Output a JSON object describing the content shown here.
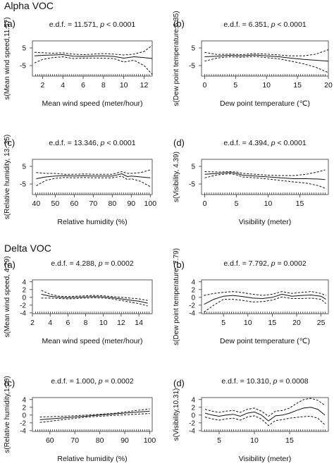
{
  "sections": [
    {
      "title": "Alpha VOC"
    },
    {
      "title": "Delta VOC"
    }
  ],
  "chart_data": [
    {
      "type": "line",
      "section": "Alpha VOC",
      "panel": "(a)",
      "stat_prefix": "e.d.f. = 11.571, ",
      "p_label": "p",
      "p_value": " < 0.0001",
      "xlabel": "Mean wind speed (meter/hour)",
      "ylabel": "s(Mean wind speed,11.57)",
      "xlim": [
        1,
        12.8
      ],
      "ylim": [
        -11,
        9
      ],
      "xticks": [
        2,
        4,
        6,
        8,
        10,
        12
      ],
      "yticks": [
        5,
        -5
      ],
      "series": [
        {
          "style": "solid",
          "x": [
            1.2,
            2,
            3,
            4,
            5,
            6,
            7,
            8,
            9,
            10,
            11,
            12,
            12.8
          ],
          "y": [
            0.5,
            0.8,
            1.0,
            1.2,
            0.3,
            0.2,
            0.4,
            0.5,
            0.2,
            -0.8,
            0.0,
            -0.5,
            -1.0
          ]
        },
        {
          "style": "dashed",
          "x": [
            1.2,
            2,
            3,
            4,
            5,
            6,
            7,
            8,
            9,
            10,
            11,
            12,
            12.8
          ],
          "y": [
            2.5,
            2.3,
            2.0,
            2.2,
            1.5,
            1.2,
            1.5,
            1.8,
            1.5,
            1.0,
            1.5,
            3.0,
            6.5
          ]
        },
        {
          "style": "dashed",
          "x": [
            1.2,
            2,
            3,
            4,
            5,
            6,
            7,
            8,
            9,
            10,
            11,
            12,
            12.8
          ],
          "y": [
            -3.5,
            -1.5,
            -0.5,
            0.0,
            -1.0,
            -0.8,
            -0.7,
            -0.8,
            -1.0,
            -3.0,
            -2.0,
            -5.0,
            -10.0
          ]
        }
      ]
    },
    {
      "type": "line",
      "section": "Alpha VOC",
      "panel": "(b)",
      "stat_prefix": "e.d.f. = 6.351, ",
      "p_label": "p",
      "p_value": " < 0.0001",
      "xlabel": "Dew point temperature (℃)",
      "ylabel": "s(Dew point temperature,6.35)",
      "xlim": [
        -0.5,
        20
      ],
      "ylim": [
        -11,
        9
      ],
      "xticks": [
        0,
        5,
        10,
        15,
        20
      ],
      "yticks": [
        5,
        -5
      ],
      "series": [
        {
          "style": "solid",
          "x": [
            0,
            2,
            4,
            6,
            8,
            10,
            12,
            14,
            16,
            18,
            20
          ],
          "y": [
            0.0,
            0.3,
            0.8,
            0.5,
            1.0,
            0.5,
            0.0,
            -0.8,
            -1.5,
            -2.0,
            -2.5
          ]
        },
        {
          "style": "dashed",
          "x": [
            0,
            2,
            4,
            6,
            8,
            10,
            12,
            14,
            16,
            18,
            20
          ],
          "y": [
            2.5,
            1.3,
            1.5,
            1.2,
            1.8,
            1.5,
            1.0,
            0.5,
            0.5,
            1.5,
            4.0
          ]
        },
        {
          "style": "dashed",
          "x": [
            0,
            2,
            4,
            6,
            8,
            10,
            12,
            14,
            16,
            18,
            20
          ],
          "y": [
            -2.5,
            -0.7,
            0.0,
            -0.3,
            0.2,
            -0.5,
            -1.2,
            -2.5,
            -4.0,
            -6.0,
            -9.0
          ]
        }
      ]
    },
    {
      "type": "line",
      "section": "Alpha VOC",
      "panel": "(c)",
      "stat_prefix": "e.d.f. = 13.346, ",
      "p_label": "p",
      "p_value": " < 0.0001",
      "xlabel": "Relative humidity (%)",
      "ylabel": "s(Relative humidity, 13. 35)",
      "xlim": [
        38,
        101
      ],
      "ylim": [
        -11,
        9
      ],
      "xticks": [
        40,
        50,
        60,
        70,
        80,
        90,
        100
      ],
      "yticks": [
        5,
        -5
      ],
      "series": [
        {
          "style": "solid",
          "x": [
            40,
            45,
            50,
            55,
            60,
            65,
            70,
            75,
            80,
            85,
            88,
            90,
            95,
            100
          ],
          "y": [
            -2.0,
            -1.0,
            -0.5,
            -0.3,
            -0.5,
            -0.3,
            -0.5,
            -0.5,
            -0.5,
            0.8,
            -0.8,
            -0.5,
            -1.0,
            -1.5
          ]
        },
        {
          "style": "dashed",
          "x": [
            40,
            45,
            50,
            55,
            60,
            65,
            70,
            75,
            80,
            85,
            88,
            90,
            95,
            100
          ],
          "y": [
            1.5,
            1.0,
            1.0,
            0.5,
            0.5,
            0.7,
            0.5,
            0.5,
            0.5,
            2.0,
            1.0,
            1.0,
            1.5,
            3.0
          ]
        },
        {
          "style": "dashed",
          "x": [
            40,
            45,
            50,
            55,
            60,
            65,
            70,
            75,
            80,
            85,
            88,
            90,
            95,
            100
          ],
          "y": [
            -6.0,
            -3.0,
            -1.8,
            -1.3,
            -1.5,
            -1.3,
            -1.5,
            -1.5,
            -1.5,
            -0.5,
            -2.5,
            -2.0,
            -3.5,
            -6.5
          ]
        }
      ]
    },
    {
      "type": "line",
      "section": "Alpha VOC",
      "panel": "(d)",
      "stat_prefix": "e.d.f. = 4.394, ",
      "p_label": "p",
      "p_value": " < 0.0001",
      "xlabel": "Visibility (meter)",
      "ylabel": "s(Visibility, 4.39)",
      "xlim": [
        -0.5,
        19.5
      ],
      "ylim": [
        -11,
        9
      ],
      "xticks": [
        0,
        5,
        10,
        15
      ],
      "yticks": [
        5,
        -5
      ],
      "series": [
        {
          "style": "solid",
          "x": [
            0,
            2,
            4,
            5,
            6,
            8,
            10,
            12,
            14,
            16,
            18,
            19
          ],
          "y": [
            0.5,
            1.0,
            1.5,
            1.0,
            0.0,
            -0.5,
            -1.0,
            -1.5,
            -2.0,
            -2.0,
            -2.2,
            -2.5
          ]
        },
        {
          "style": "dashed",
          "x": [
            0,
            2,
            4,
            5,
            6,
            8,
            10,
            12,
            14,
            16,
            18,
            19
          ],
          "y": [
            2.0,
            1.8,
            2.0,
            1.8,
            1.0,
            0.5,
            0.0,
            -0.2,
            -0.2,
            0.5,
            2.0,
            3.0
          ]
        },
        {
          "style": "dashed",
          "x": [
            0,
            2,
            4,
            5,
            6,
            8,
            10,
            12,
            14,
            16,
            18,
            19
          ],
          "y": [
            -1.5,
            0.2,
            0.8,
            0.2,
            -1.0,
            -1.5,
            -2.2,
            -3.0,
            -3.8,
            -4.5,
            -6.0,
            -7.5
          ]
        }
      ]
    },
    {
      "type": "line",
      "section": "Delta VOC",
      "panel": "(a)",
      "stat_prefix": "e.d.f. = 4.288, ",
      "p_label": "p",
      "p_value": " = 0.0002",
      "xlabel": "Mean wind speed (meter/hour)",
      "ylabel": "s(Mean wind speed, 4.29)",
      "xlim": [
        2,
        15.5
      ],
      "ylim": [
        -4.2,
        4.5
      ],
      "xticks": [
        2,
        4,
        6,
        8,
        10,
        12,
        14
      ],
      "yticks": [
        4,
        2,
        0,
        -2,
        -4
      ],
      "series": [
        {
          "style": "solid",
          "x": [
            3,
            4,
            5,
            6,
            7,
            8,
            9,
            10,
            11,
            12,
            13,
            14,
            15
          ],
          "y": [
            0.8,
            0.3,
            0.0,
            -0.1,
            0.0,
            0.1,
            0.2,
            0.1,
            -0.1,
            -0.4,
            -0.7,
            -1.0,
            -1.5
          ]
        },
        {
          "style": "dashed",
          "x": [
            3,
            4,
            5,
            6,
            7,
            8,
            9,
            10,
            11,
            12,
            13,
            14,
            15
          ],
          "y": [
            1.8,
            0.8,
            0.3,
            0.2,
            0.3,
            0.4,
            0.5,
            0.4,
            0.2,
            0.0,
            -0.2,
            -0.4,
            -0.8
          ]
        },
        {
          "style": "dashed",
          "x": [
            3,
            4,
            5,
            6,
            7,
            8,
            9,
            10,
            11,
            12,
            13,
            14,
            15
          ],
          "y": [
            -0.2,
            -0.2,
            -0.3,
            -0.4,
            -0.3,
            -0.2,
            -0.1,
            -0.2,
            -0.4,
            -0.8,
            -1.2,
            -1.6,
            -2.2
          ]
        }
      ]
    },
    {
      "type": "line",
      "section": "Delta VOC",
      "panel": "(b)",
      "stat_prefix": "e.d.f. = 7.792, ",
      "p_label": "p",
      "p_value": " = 0.0002",
      "xlabel": "Dew point temperature (℃)",
      "ylabel": "s(Dew point temperature, 7.79)",
      "xlim": [
        0.5,
        26.5
      ],
      "ylim": [
        -4.2,
        4.5
      ],
      "xticks": [
        5,
        10,
        15,
        20,
        25
      ],
      "yticks": [
        4,
        2,
        0,
        -2,
        -4
      ],
      "series": [
        {
          "style": "solid",
          "x": [
            1,
            3,
            5,
            7,
            9,
            11,
            13,
            15,
            17,
            19,
            21,
            23,
            25,
            26
          ],
          "y": [
            -1.8,
            -0.5,
            0.3,
            0.5,
            0.2,
            -0.2,
            -0.3,
            0.0,
            0.8,
            0.3,
            0.5,
            0.6,
            0.3,
            -0.5
          ]
        },
        {
          "style": "dashed",
          "x": [
            1,
            3,
            5,
            7,
            9,
            11,
            13,
            15,
            17,
            19,
            21,
            23,
            25,
            26
          ],
          "y": [
            0.5,
            1.0,
            1.3,
            1.5,
            1.2,
            0.8,
            0.5,
            0.8,
            1.5,
            1.0,
            1.3,
            1.5,
            1.0,
            0.5
          ]
        },
        {
          "style": "dashed",
          "x": [
            1,
            3,
            5,
            7,
            9,
            11,
            13,
            15,
            17,
            19,
            21,
            23,
            25,
            26
          ],
          "y": [
            -3.8,
            -2.0,
            -0.5,
            -0.5,
            -0.8,
            -1.2,
            -1.1,
            -0.7,
            0.1,
            -0.3,
            -0.3,
            -0.2,
            -0.5,
            -1.6
          ]
        }
      ]
    },
    {
      "type": "line",
      "section": "Delta VOC",
      "panel": "(c)",
      "stat_prefix": "e.d.f. = 1.000, ",
      "p_label": "p",
      "p_value": " = 0.0002",
      "xlabel": "Relative humidity (%)",
      "ylabel": "s(Relative humidity,1.00)",
      "xlim": [
        53,
        101
      ],
      "ylim": [
        -4.2,
        4.5
      ],
      "xticks": [
        60,
        70,
        80,
        90,
        100
      ],
      "yticks": [
        4,
        2,
        0,
        -2,
        -4
      ],
      "series": [
        {
          "style": "solid",
          "x": [
            56,
            100
          ],
          "y": [
            -1.2,
            1.0
          ]
        },
        {
          "style": "dashed",
          "x": [
            56,
            65,
            75,
            85,
            100
          ],
          "y": [
            -0.5,
            -0.3,
            0.0,
            0.4,
            1.6
          ]
        },
        {
          "style": "dashed",
          "x": [
            56,
            65,
            75,
            85,
            100
          ],
          "y": [
            -1.9,
            -1.2,
            -0.5,
            -0.1,
            0.4
          ]
        }
      ]
    },
    {
      "type": "line",
      "section": "Delta VOC",
      "panel": "(d)",
      "stat_prefix": "e.d.f. = 10.310, ",
      "p_label": "p",
      "p_value": " = 0.0008",
      "xlabel": "Visibility (meter)",
      "ylabel": "s(Visibility,10.31)",
      "xlim": [
        2.5,
        20.5
      ],
      "ylim": [
        -4.2,
        4.5
      ],
      "xticks": [
        5,
        10,
        15
      ],
      "yticks": [
        4,
        2,
        0,
        -2,
        -4
      ],
      "series": [
        {
          "style": "solid",
          "x": [
            3,
            4,
            5,
            6,
            7,
            8,
            9,
            10,
            11,
            12,
            13,
            14,
            15,
            16,
            17,
            18,
            19,
            20
          ],
          "y": [
            0.5,
            0.0,
            -0.3,
            0.0,
            0.2,
            -0.3,
            0.5,
            0.8,
            0.0,
            -1.5,
            -0.2,
            0.0,
            0.5,
            1.2,
            1.8,
            2.0,
            1.5,
            0.0
          ]
        },
        {
          "style": "dashed",
          "x": [
            3,
            4,
            5,
            6,
            7,
            8,
            9,
            10,
            11,
            12,
            13,
            14,
            15,
            16,
            17,
            18,
            19,
            20
          ],
          "y": [
            1.5,
            1.0,
            0.7,
            1.0,
            1.2,
            0.7,
            1.5,
            1.8,
            1.0,
            -0.3,
            1.0,
            1.2,
            1.8,
            3.0,
            4.0,
            4.3,
            3.8,
            2.5
          ]
        },
        {
          "style": "dashed",
          "x": [
            3,
            4,
            5,
            6,
            7,
            8,
            9,
            10,
            11,
            12,
            13,
            14,
            15,
            16,
            17,
            18,
            19,
            20
          ],
          "y": [
            -0.5,
            -1.0,
            -1.3,
            -1.0,
            -0.8,
            -1.3,
            -0.5,
            -0.2,
            -1.0,
            -2.7,
            -1.4,
            -1.2,
            -0.8,
            -0.6,
            -0.4,
            -0.3,
            -0.8,
            -2.5
          ]
        }
      ]
    }
  ]
}
